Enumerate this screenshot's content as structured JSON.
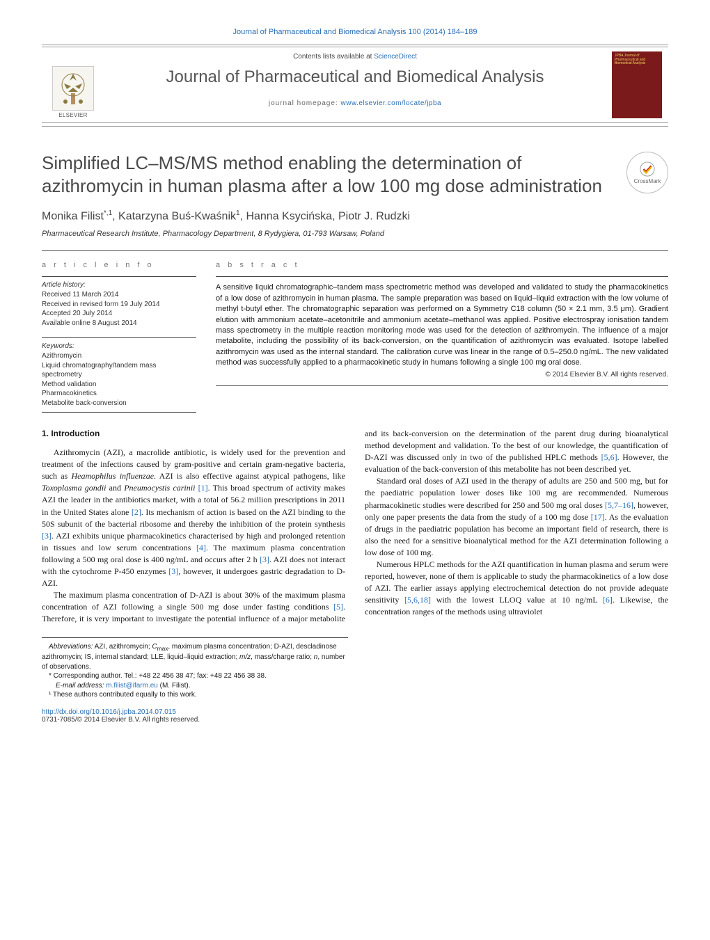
{
  "colors": {
    "link": "#2a6fb5",
    "title_gray": "#4a4a4a",
    "cover_bg": "#7a1a1a",
    "cover_accent": "#f2d060"
  },
  "header": {
    "journal_ref": "Journal of Pharmaceutical and Biomedical Analysis 100 (2014) 184–189",
    "contents_prefix": "Contents lists available at ",
    "contents_link": "ScienceDirect",
    "journal_title": "Journal of Pharmaceutical and Biomedical Analysis",
    "homepage_label": "journal homepage: ",
    "homepage_url": "www.elsevier.com/locate/jpba",
    "publisher_label": "ELSEVIER",
    "cover_text": "JPBA    Journal of Pharmaceutical and Biomedical Analysis"
  },
  "crossmark_label": "CrossMark",
  "article": {
    "title": "Simplified LC–MS/MS method enabling the determination of azithromycin in human plasma after a low 100 mg dose administration",
    "authors_html": "Monika Filist<sup>*,1</sup>, Katarzyna Buś-Kwaśnik<sup>1</sup>, Hanna Ksycińska, Piotr J. Rudzki",
    "affiliation": "Pharmaceutical Research Institute, Pharmacology Department, 8 Rydygiera, 01-793 Warsaw, Poland"
  },
  "info": {
    "article_info_label": "a r t i c l e    i n f o",
    "abstract_label": "a b s t r a c t",
    "history_head": "Article history:",
    "history": [
      "Received 11 March 2014",
      "Received in revised form 19 July 2014",
      "Accepted 20 July 2014",
      "Available online 8 August 2014"
    ],
    "keywords_head": "Keywords:",
    "keywords": [
      "Azithromycin",
      "Liquid chromatography/tandem mass spectrometry",
      "Method validation",
      "Pharmacokinetics",
      "Metabolite back-conversion"
    ],
    "abstract": "A sensitive liquid chromatographic–tandem mass spectrometric method was developed and validated to study the pharmacokinetics of a low dose of azithromycin in human plasma. The sample preparation was based on liquid–liquid extraction with the low volume of methyl t-butyl ether. The chromatographic separation was performed on a Symmetry C18 column (50 × 2.1 mm, 3.5 μm). Gradient elution with ammonium acetate–acetonitrile and ammonium acetate–methanol was applied. Positive electrospray ionisation tandem mass spectrometry in the multiple reaction monitoring mode was used for the detection of azithromycin. The influence of a major metabolite, including the possibility of its back-conversion, on the quantification of azithromycin was evaluated. Isotope labelled azithromycin was used as the internal standard. The calibration curve was linear in the range of 0.5–250.0 ng/mL. The new validated method was successfully applied to a pharmacokinetic study in humans following a single 100 mg oral dose.",
    "copyright": "© 2014 Elsevier B.V. All rights reserved."
  },
  "body": {
    "section1_head": "1.  Introduction",
    "para1_html": "Azithromycin (AZI), a macrolide antibiotic, is widely used for the prevention and treatment of the infections caused by gram-positive and certain gram-negative bacteria, such as <span class=\"ital\">Heamophilus influenzae</span>. AZI is also effective against atypical pathogens, like <span class=\"ital\">Toxoplasma gondii</span> and <span class=\"ital\">Pneumocystis carinii</span> <span class=\"cite\">[1]</span>. This broad spectrum of activity makes AZI the leader in the antibiotics market, with a total of 56.2 million prescriptions in 2011 in the United States alone <span class=\"cite\">[2]</span>. Its mechanism of action is based on the AZI binding to the 50S subunit of the bacterial ribosome and thereby the inhibition of the protein synthesis <span class=\"cite\">[3]</span>. AZI exhibits unique pharmacokinetics characterised by high and prolonged retention in tissues and low serum concentrations <span class=\"cite\">[4]</span>. The maximum plasma concentration following a 500 mg oral dose is 400 ng/mL and occurs after 2 h <span class=\"cite\">[3]</span>. AZI does not interact with the cytochrome P-450 enzymes <span class=\"cite\">[3]</span>, however, it undergoes gastric degradation to D-AZI.",
    "para2_html": "The maximum plasma concentration of D-AZI is about 30% of the maximum plasma concentration of AZI following a single 500 mg dose under fasting conditions <span class=\"cite\">[5]</span>. Therefore, it is very important to investigate the potential influence of a major metabolite and its back-conversion on the determination of the parent drug during bioanalytical method development and validation. To the best of our knowledge, the quantification of D-AZI was discussed only in two of the published HPLC methods <span class=\"cite\">[5,6]</span>. However, the evaluation of the back-conversion of this metabolite has not been described yet.",
    "para3_html": "Standard oral doses of AZI used in the therapy of adults are 250 and 500 mg, but for the paediatric population lower doses like 100 mg are recommended. Numerous pharmacokinetic studies were described for 250 and 500 mg oral doses <span class=\"cite\">[5,7–16]</span>, however, only one paper presents the data from the study of a 100 mg dose <span class=\"cite\">[17]</span>. As the evaluation of drugs in the paediatric population has become an important field of research, there is also the need for a sensitive bioanalytical method for the AZI determination following a low dose of 100 mg.",
    "para4_html": "Numerous HPLC methods for the AZI quantification in human plasma and serum were reported, however, none of them is applicable to study the pharmacokinetics of a low dose of AZI. The earlier assays applying electrochemical detection do not provide adequate sensitivity <span class=\"cite\">[5,6,18]</span> with the lowest LLOQ value at 10 ng/mL <span class=\"cite\">[6]</span>. Likewise, the concentration ranges of the methods using ultraviolet"
  },
  "footnotes": {
    "abbrev_label": "Abbreviations:",
    "abbrev_body_html": " AZI, azithromycin; <span class=\"ital\">C</span><sub>max</sub>, maximum plasma concentration; D-AZI, descladinose azithromycin; IS, internal standard; LLE, liquid–liquid extraction; <span class=\"ital\">m/z</span>, mass/charge ratio; <span class=\"ital\">n</span>, number of observations.",
    "corresponding": "* Corresponding author. Tel.: +48 22 456 38 47; fax: +48 22 456 38 38.",
    "email_label": "E-mail address: ",
    "email": "m.filist@ifarm.eu",
    "email_suffix": " (M. Filist).",
    "note1": "¹ These authors contributed equally to this work."
  },
  "footer": {
    "doi": "http://dx.doi.org/10.1016/j.jpba.2014.07.015",
    "issn_line": "0731-7085/© 2014 Elsevier B.V. All rights reserved."
  }
}
